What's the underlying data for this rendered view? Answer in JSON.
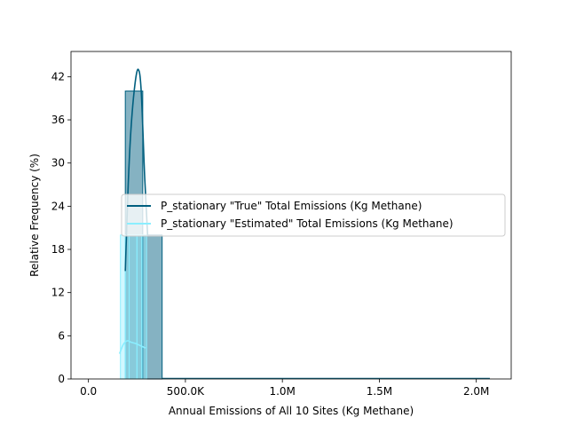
{
  "chart_data": {
    "type": "bar",
    "title": "",
    "xlabel": "Annual Emissions of All 10 Sites (Kg Methane)",
    "ylabel": "Relative Frequency (%)",
    "xlim": [
      -90000,
      2180000
    ],
    "ylim": [
      0,
      45.5
    ],
    "x_ticks": [
      {
        "value": 0,
        "label": "0.0"
      },
      {
        "value": 500000,
        "label": "500.0K"
      },
      {
        "value": 1000000,
        "label": "1.0M"
      },
      {
        "value": 1500000,
        "label": "1.5M"
      },
      {
        "value": 2000000,
        "label": "2.0M"
      }
    ],
    "y_ticks": [
      {
        "value": 0,
        "label": "0"
      },
      {
        "value": 6,
        "label": "6"
      },
      {
        "value": 12,
        "label": "12"
      },
      {
        "value": 18,
        "label": "18"
      },
      {
        "value": 24,
        "label": "24"
      },
      {
        "value": 30,
        "label": "30"
      },
      {
        "value": 36,
        "label": "36"
      },
      {
        "value": 42,
        "label": "42"
      }
    ],
    "grid": false,
    "legend_position": "center",
    "series": [
      {
        "name": "P_stationary \"True\" Total Emissions (Kg Methane)",
        "color": "#005f7f",
        "fill": "#005f7f",
        "fill_opacity": 0.48,
        "bins": [
          {
            "x0": 190000,
            "x1": 280000,
            "value": 40
          },
          {
            "x0": 280000,
            "x1": 380000,
            "value": 20
          }
        ],
        "kde": [
          [
            190000,
            15
          ],
          [
            205000,
            27
          ],
          [
            220000,
            35
          ],
          [
            240000,
            41
          ],
          [
            257000,
            43
          ],
          [
            272000,
            40
          ],
          [
            290000,
            28
          ],
          [
            305000,
            20
          ]
        ]
      },
      {
        "name": "P_stationary \"Estimated\" Total Emissions (Kg Methane)",
        "color": "#8beeff",
        "fill": "#8beeff",
        "fill_opacity": 0.4,
        "bins": [
          {
            "x0": 165000,
            "x1": 190000,
            "value": 20
          },
          {
            "x0": 190000,
            "x1": 210000,
            "value": 20
          },
          {
            "x0": 210000,
            "x1": 250000,
            "value": 20
          },
          {
            "x0": 250000,
            "x1": 275000,
            "value": 20
          },
          {
            "x0": 275000,
            "x1": 300000,
            "value": 20
          }
        ],
        "kde": [
          [
            160000,
            3.5
          ],
          [
            180000,
            4.8
          ],
          [
            200000,
            5.3
          ],
          [
            220000,
            5.1
          ],
          [
            245000,
            4.9
          ],
          [
            270000,
            4.6
          ],
          [
            295000,
            4.3
          ]
        ]
      }
    ],
    "extra_lines": [
      {
        "series": 0,
        "y": 0.1,
        "x0": 380000,
        "x1": 2070000
      }
    ]
  }
}
